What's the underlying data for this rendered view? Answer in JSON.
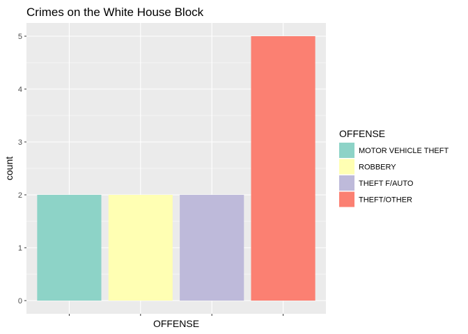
{
  "chart_data": {
    "type": "bar",
    "title": "Crimes on the White House Block",
    "xlabel": "OFFENSE",
    "ylabel": "count",
    "categories": [
      "MOTOR VEHICLE THEFT",
      "ROBBERY",
      "THEFT F/AUTO",
      "THEFT/OTHER"
    ],
    "values": [
      2,
      2,
      2,
      5
    ],
    "colors": [
      "#8dd3c7",
      "#ffffb3",
      "#bebada",
      "#fb8072"
    ],
    "ylim": [
      0,
      5
    ],
    "yticks": [
      0,
      1,
      2,
      3,
      4,
      5
    ],
    "grid": true,
    "x_tick_labels_shown": false,
    "legend": {
      "title": "OFFENSE",
      "position": "right",
      "entries": [
        "MOTOR VEHICLE THEFT",
        "ROBBERY",
        "THEFT F/AUTO",
        "THEFT/OTHER"
      ]
    },
    "panel_background": "#ebebeb",
    "grid_color": "#ffffff"
  }
}
